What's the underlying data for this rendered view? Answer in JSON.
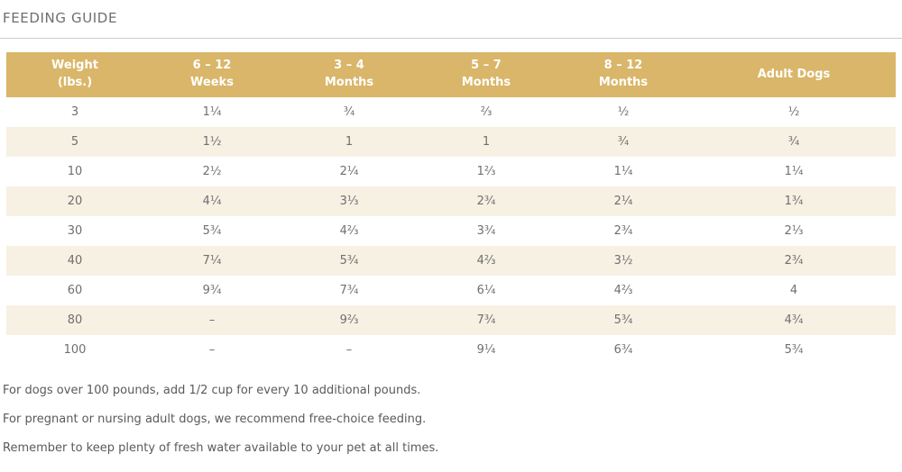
{
  "page": {
    "title": "FEEDING GUIDE"
  },
  "table": {
    "headers": [
      "Weight\n(lbs.)",
      "6 – 12\nWeeks",
      "3 – 4\nMonths",
      "5 – 7\nMonths",
      "8 – 12\nMonths",
      "Adult Dogs"
    ],
    "rows": [
      [
        "3",
        "1¼",
        "¾",
        "⅔",
        "½",
        "½"
      ],
      [
        "5",
        "1½",
        "1",
        "1",
        "¾",
        "¾"
      ],
      [
        "10",
        "2½",
        "2¼",
        "1⅔",
        "1¼",
        "1¼"
      ],
      [
        "20",
        "4¼",
        "3⅓",
        "2¾",
        "2¼",
        "1¾"
      ],
      [
        "30",
        "5¾",
        "4⅔",
        "3¾",
        "2¾",
        "2⅓"
      ],
      [
        "40",
        "7¼",
        "5¾",
        "4⅔",
        "3½",
        "2¾"
      ],
      [
        "60",
        "9¾",
        "7¾",
        "6¼",
        "4⅔",
        "4"
      ],
      [
        "80",
        "–",
        "9⅔",
        "7¾",
        "5¾",
        "4¾"
      ],
      [
        "100",
        "–",
        "–",
        "9¼",
        "6¾",
        "5¾"
      ]
    ]
  },
  "notes": [
    "For dogs over 100 pounds, add 1/2 cup for every 10 additional pounds.",
    "For pregnant or nursing adult dogs, we recommend free-choice feeding.",
    "Remember to keep plenty of fresh water available to your pet at all times."
  ],
  "colors": {
    "header_bg": "#d9b669",
    "row_alt_bg": "#f7f1e3",
    "cell_text": "#6e6f71",
    "title_text": "#6d6e71",
    "note_text": "#5a5a5c",
    "divider": "#cccccc"
  }
}
